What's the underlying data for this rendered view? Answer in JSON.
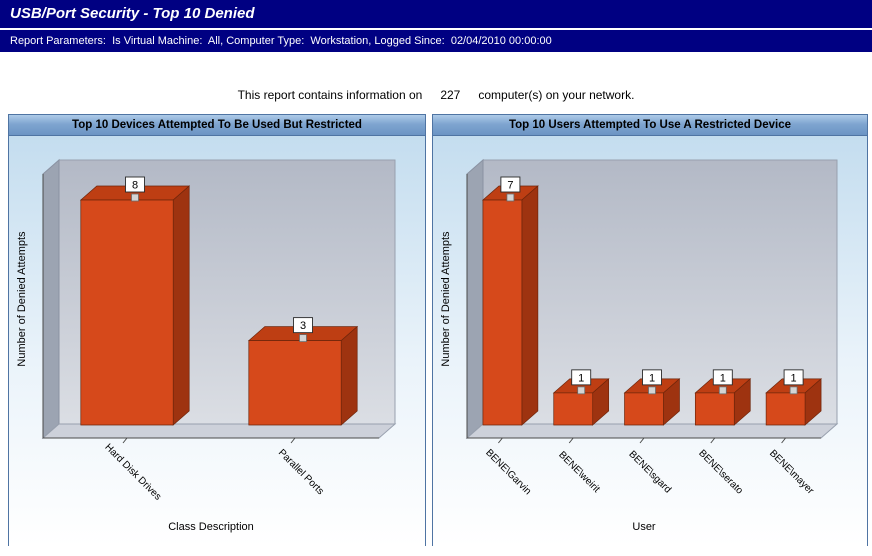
{
  "header": {
    "title": "USB/Port Security - Top 10 Denied",
    "parameters": "Report Parameters:  Is Virtual Machine:  All, Computer Type:  Workstation, Logged Since:  02/04/2010 00:00:00"
  },
  "summary": {
    "prefix": "This report contains information on",
    "count": "227",
    "suffix": "computer(s) on your network."
  },
  "chart_data": [
    {
      "type": "bar",
      "style": "3d",
      "title": "Top 10 Devices Attempted To Be Used But Restricted",
      "categories": [
        "Hard Disk Drives",
        "Parallel Ports"
      ],
      "values": [
        8,
        3
      ],
      "xlabel": "Class Description",
      "ylabel": "Number of Denied Attempts",
      "ylim": [
        0,
        8
      ],
      "legend": "none",
      "grid": false,
      "colors": {
        "front": "#D6491B",
        "top": "#BE3E13",
        "side": "#9E3310",
        "edge": "#6E250A"
      }
    },
    {
      "type": "bar",
      "style": "3d",
      "title": "Top 10 Users Attempted To Use A Restricted Device",
      "categories": [
        "BENE\\Garvin",
        "BENE\\weirit",
        "BENE\\sgard",
        "BENE\\serato",
        "BENE\\mayer"
      ],
      "values": [
        7,
        1,
        1,
        1,
        1
      ],
      "xlabel": "User",
      "ylabel": "Number of Denied Attempts",
      "ylim": [
        0,
        7
      ],
      "legend": "none",
      "grid": false,
      "colors": {
        "front": "#D6491B",
        "top": "#BE3E13",
        "side": "#9E3310",
        "edge": "#6E250A"
      }
    }
  ],
  "theme": {
    "banner_color": "#000082",
    "panel_border": "#4F74A3",
    "wall_color": "#B3B9C6",
    "floor_color": "#CDD1DA"
  }
}
